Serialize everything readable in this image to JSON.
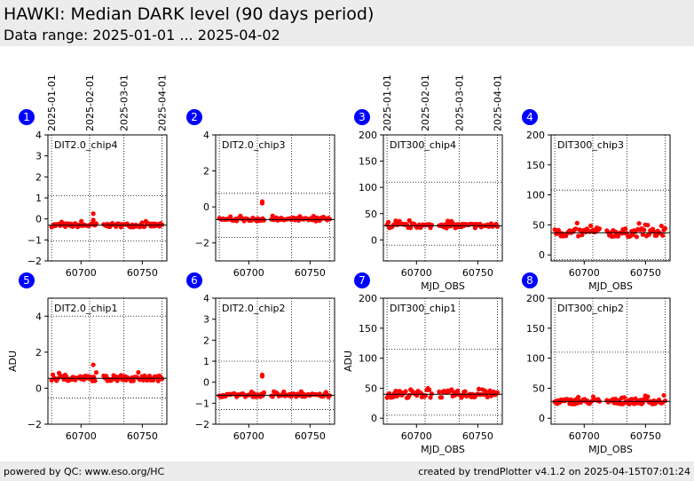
{
  "header": {
    "title": "HAWKI: Median DARK level (90 days period)",
    "subtitle": "Data range: 2025-01-01 ... 2025-04-02"
  },
  "footer": {
    "left": "powered by QC: www.eso.org/HC",
    "right": "created by trendPlotter v4.1.2 on 2025-04-15T07:01:24"
  },
  "colors": {
    "points": "#ff0000",
    "badge": "#0000ff",
    "header_bg": "#ececec"
  },
  "top_date_ticks": [
    {
      "label": "2025-01-01",
      "mjd": 60676
    },
    {
      "label": "2025-02-01",
      "mjd": 60707
    },
    {
      "label": "2025-03-01",
      "mjd": 60735
    },
    {
      "label": "2025-04-01",
      "mjd": 60766
    }
  ],
  "chart_data": [
    {
      "id": 1,
      "type": "scatter",
      "label": "DIT2.0_chip4",
      "xlim": [
        60673,
        60770
      ],
      "ylim": [
        -2,
        4
      ],
      "yticks": [
        -2,
        -1,
        0,
        1,
        2,
        3,
        4
      ],
      "xticks": [
        60700,
        60750
      ],
      "xlabel": "",
      "ylabel": "",
      "median": -0.3,
      "limits": [
        -1.05,
        1.1
      ],
      "n_points": 90,
      "spread": 0.09,
      "outliers": [
        {
          "x": 60710,
          "y": 0.25
        },
        {
          "x": 60710,
          "y": -0.05
        }
      ]
    },
    {
      "id": 2,
      "type": "scatter",
      "label": "DIT2.0_chip3",
      "xlim": [
        60673,
        60770
      ],
      "ylim": [
        -3,
        4
      ],
      "yticks": [
        -2,
        0,
        2,
        4
      ],
      "xticks": [
        60700,
        60750
      ],
      "xlabel": "",
      "ylabel": "",
      "median": -0.7,
      "limits": [
        -1.7,
        0.75
      ],
      "n_points": 90,
      "spread": 0.09,
      "outliers": [
        {
          "x": 60711,
          "y": 0.3
        },
        {
          "x": 60711,
          "y": 0.2
        }
      ]
    },
    {
      "id": 3,
      "type": "scatter",
      "label": "DIT300_chip4",
      "xlim": [
        60673,
        60770
      ],
      "ylim": [
        -40,
        200
      ],
      "yticks": [
        0,
        50,
        100,
        150,
        200
      ],
      "xticks": [
        60700,
        60750
      ],
      "xlabel": "MJD_OBS",
      "ylabel": "",
      "median": 27,
      "limits": [
        -10,
        110
      ],
      "n_points": 90,
      "spread": 4.5,
      "outliers": []
    },
    {
      "id": 4,
      "type": "scatter",
      "label": "DIT300_chip3",
      "xlim": [
        60673,
        60770
      ],
      "ylim": [
        -10,
        200
      ],
      "yticks": [
        0,
        50,
        100,
        150,
        200
      ],
      "xticks": [
        60700,
        60750
      ],
      "xlabel": "MJD_OBS",
      "ylabel": "",
      "median": 37,
      "limits": [
        -8,
        108
      ],
      "n_points": 90,
      "spread": 7,
      "outliers": []
    },
    {
      "id": 5,
      "type": "scatter",
      "label": "DIT2.0_chip1",
      "xlim": [
        60673,
        60770
      ],
      "ylim": [
        -2,
        5
      ],
      "yticks": [
        -2,
        0,
        2,
        4
      ],
      "xticks": [
        60700,
        60750
      ],
      "xlabel": "",
      "ylabel": "ADU",
      "median": 0.55,
      "limits": [
        -0.55,
        4.0
      ],
      "n_points": 90,
      "spread": 0.15,
      "outliers": [
        {
          "x": 60710,
          "y": 1.3
        }
      ]
    },
    {
      "id": 6,
      "type": "scatter",
      "label": "DIT2.0_chip2",
      "xlim": [
        60673,
        60770
      ],
      "ylim": [
        -2,
        4
      ],
      "yticks": [
        -2,
        -1,
        0,
        1,
        2,
        3,
        4
      ],
      "xticks": [
        60700,
        60750
      ],
      "xlabel": "",
      "ylabel": "",
      "median": -0.62,
      "limits": [
        -1.3,
        1.0
      ],
      "n_points": 90,
      "spread": 0.08,
      "outliers": [
        {
          "x": 60711,
          "y": 0.35
        },
        {
          "x": 60711,
          "y": 0.28
        }
      ]
    },
    {
      "id": 7,
      "type": "scatter",
      "label": "DIT300_chip1",
      "xlim": [
        60673,
        60770
      ],
      "ylim": [
        -10,
        200
      ],
      "yticks": [
        0,
        50,
        100,
        150,
        200
      ],
      "xticks": [
        60700,
        60750
      ],
      "xlabel": "MJD_OBS",
      "ylabel": "ADU",
      "median": 40,
      "limits": [
        5,
        115
      ],
      "n_points": 90,
      "spread": 6,
      "outliers": []
    },
    {
      "id": 8,
      "type": "scatter",
      "label": "DIT300_chip2",
      "xlim": [
        60673,
        60770
      ],
      "ylim": [
        -10,
        200
      ],
      "yticks": [
        0,
        50,
        100,
        150,
        200
      ],
      "xticks": [
        60700,
        60750
      ],
      "xlabel": "MJD_OBS",
      "ylabel": "",
      "median": 28,
      "limits": [
        -10,
        110
      ],
      "n_points": 90,
      "spread": 4.5,
      "outliers": []
    }
  ]
}
